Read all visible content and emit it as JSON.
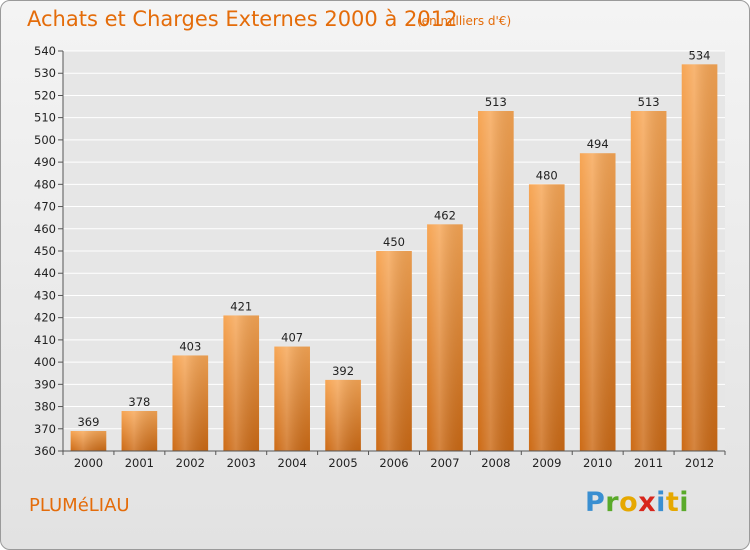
{
  "header": {
    "title": "Achats et Charges Externes 2000 à 2012",
    "unit": "(en milliers d'€)"
  },
  "footer": {
    "commune": "PLUMéLIAU",
    "logo": {
      "text": "Proxiti",
      "icon": "proxiti-logo"
    }
  },
  "colors": {
    "bar_top": "#f7a655",
    "bar_bottom": "#cc6a15",
    "title": "#e46c0a",
    "grid": "#ffffff",
    "plot_bg": "#e6e6e6"
  },
  "chart_data": {
    "type": "bar",
    "title": "Achats et Charges Externes 2000 à 2012",
    "xlabel": "",
    "ylabel": "",
    "categories": [
      "2000",
      "2001",
      "2002",
      "2003",
      "2004",
      "2005",
      "2006",
      "2007",
      "2008",
      "2009",
      "2010",
      "2011",
      "2012"
    ],
    "values": [
      369,
      378,
      403,
      421,
      407,
      392,
      450,
      462,
      513,
      480,
      494,
      513,
      534
    ],
    "ylim": [
      360,
      540
    ],
    "ytick_step": 10,
    "grid": true,
    "legend": "none"
  }
}
